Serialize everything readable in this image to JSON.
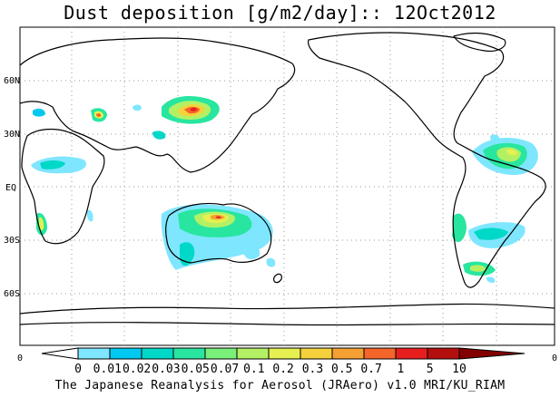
{
  "title": "Dust deposition [g/m2/day]:: 12Oct2012",
  "lat_labels": [
    "60N",
    "30N",
    "EQ",
    "30S",
    "60S"
  ],
  "corner_label_left": "0",
  "corner_label_right": "0",
  "colorbar": {
    "tick_labels": [
      "0",
      "0.01",
      "0.02",
      "0.03",
      "0.05",
      "0.07",
      "0.1",
      "0.2",
      "0.3",
      "0.5",
      "0.7",
      "1",
      "5",
      "10"
    ],
    "colors": [
      "#ffffff",
      "#7fe6ff",
      "#00c8f0",
      "#00d8c8",
      "#28e6a0",
      "#78f07a",
      "#b4f064",
      "#e6f050",
      "#f5d23c",
      "#f5a032",
      "#f56428",
      "#e61e1e",
      "#b40f0f",
      "#820000"
    ]
  },
  "credit": "The Japanese Reanalysis for Aerosol (JRAero) v1.0 MRI/KU_RIAM"
}
